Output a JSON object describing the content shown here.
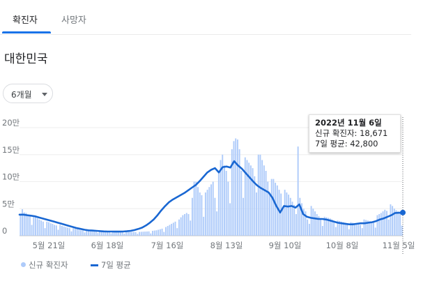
{
  "tabs": [
    {
      "label": "확진자",
      "active": true
    },
    {
      "label": "사망자",
      "active": false
    }
  ],
  "region": "대한민국",
  "period": {
    "selected": "6개월"
  },
  "tooltip": {
    "date": "2022년 11월 6일",
    "new_cases": "신규 확진자: 18,671",
    "avg7": "7일 평균: 42,800"
  },
  "legend": {
    "bars_label": "신규 확진자",
    "line_label": "7일 평균"
  },
  "colors": {
    "accent": "#1a73e8",
    "bar": "#aecbfa",
    "line": "#1967d2"
  },
  "chart_data": {
    "type": "bar",
    "x_start": "2022-05-08",
    "x_end": "2022-11-06",
    "xtick_labels": [
      "5월 21일",
      "6월 18일",
      "7월 16일",
      "8월 13일",
      "9월 10일",
      "10월 8일",
      "11월 5일"
    ],
    "ytick_labels": [
      "0",
      "5만",
      "10만",
      "15만",
      "20만"
    ],
    "ylim": [
      0,
      200000
    ],
    "grid": true,
    "series": [
      {
        "name": "신규 확진자",
        "type": "bar",
        "values": [
          40000,
          49000,
          43000,
          42000,
          38000,
          36000,
          20000,
          36000,
          35000,
          32000,
          30000,
          28000,
          26000,
          14000,
          26000,
          25000,
          23000,
          22000,
          20000,
          19000,
          11000,
          20000,
          18000,
          17000,
          16000,
          15000,
          14000,
          8000,
          14000,
          13000,
          12000,
          11000,
          10000,
          10000,
          6000,
          10000,
          9500,
          9000,
          8800,
          8500,
          8200,
          5000,
          8300,
          8200,
          8000,
          7800,
          7600,
          7500,
          4500,
          7600,
          7500,
          7400,
          7300,
          7200,
          7000,
          4000,
          7300,
          7200,
          7100,
          7000,
          6900,
          6800,
          3500,
          7000,
          7200,
          7400,
          7600,
          7800,
          8000,
          4200,
          9000,
          9500,
          10000,
          11000,
          12000,
          13000,
          7000,
          16000,
          18000,
          20000,
          22000,
          24000,
          26000,
          14000,
          30000,
          34000,
          38000,
          40000,
          42000,
          40000,
          28000,
          70000,
          100000,
          100000,
          90000,
          80000,
          75000,
          35000,
          80000,
          85000,
          90000,
          95000,
          100000,
          70000,
          45000,
          120000,
          140000,
          150000,
          130000,
          120000,
          100000,
          60000,
          160000,
          175000,
          180000,
          178000,
          160000,
          120000,
          70000,
          145000,
          140000,
          135000,
          130000,
          125000,
          110000,
          80000,
          150000,
          150000,
          140000,
          130000,
          120000,
          100000,
          75000,
          105000,
          105000,
          98000,
          93000,
          85000,
          78000,
          52000,
          85000,
          80000,
          76000,
          70000,
          63000,
          57000,
          40000,
          165000,
          70000,
          60000,
          50000,
          45000,
          30000,
          22000,
          55000,
          50000,
          45000,
          40000,
          36000,
          30000,
          18000,
          35000,
          34000,
          33000,
          32000,
          30000,
          27000,
          16000,
          28000,
          27000,
          26000,
          25000,
          24000,
          22000,
          12000,
          25000,
          24000,
          23000,
          22000,
          21000,
          20000,
          14000,
          30000,
          29000,
          28000,
          27000,
          26000,
          25000,
          15000,
          38000,
          40000,
          42000,
          45000,
          48000,
          46000,
          30000,
          58000,
          55000,
          50000,
          47000,
          45000,
          43000,
          18671
        ]
      },
      {
        "name": "7일 평균",
        "type": "line",
        "values": [
          39000,
          39000,
          38000,
          37000,
          36000,
          34000,
          32000,
          30000,
          28000,
          26000,
          24000,
          22000,
          20000,
          18000,
          16000,
          14000,
          12500,
          11000,
          10000,
          9500,
          9000,
          8500,
          8000,
          7800,
          7700,
          7600,
          7600,
          7800,
          8200,
          9000,
          10500,
          12500,
          15000,
          19000,
          24000,
          30000,
          38000,
          47000,
          55000,
          62000,
          67000,
          71000,
          75000,
          79000,
          84000,
          89000,
          94000,
          101000,
          109000,
          117000,
          122000,
          125000,
          117000,
          127000,
          128000,
          126000,
          138000,
          130000,
          124000,
          116000,
          108000,
          100000,
          93000,
          88000,
          84000,
          80000,
          70000,
          55000,
          43000,
          55000,
          54000,
          55000,
          52000,
          58000,
          40000,
          35000,
          33000,
          32000,
          31000,
          31000,
          30000,
          28000,
          26000,
          24000,
          23000,
          22000,
          21000,
          21000,
          22000,
          23000,
          23000,
          24000,
          25000,
          27000,
          30000,
          32000,
          35000,
          38000,
          42000,
          42800
        ],
        "x_fraction": [
          0,
          0.01,
          0.02,
          0.03,
          0.04,
          0.05,
          0.06,
          0.07,
          0.08,
          0.09,
          0.1,
          0.11,
          0.12,
          0.13,
          0.14,
          0.15,
          0.16,
          0.17,
          0.18,
          0.19,
          0.2,
          0.21,
          0.22,
          0.23,
          0.24,
          0.25,
          0.26,
          0.27,
          0.28,
          0.29,
          0.3,
          0.31,
          0.32,
          0.33,
          0.34,
          0.35,
          0.36,
          0.37,
          0.38,
          0.39,
          0.4,
          0.41,
          0.42,
          0.43,
          0.44,
          0.45,
          0.46,
          0.47,
          0.48,
          0.49,
          0.5,
          0.51,
          0.52,
          0.53,
          0.54,
          0.55,
          0.56,
          0.57,
          0.58,
          0.59,
          0.6,
          0.61,
          0.62,
          0.63,
          0.64,
          0.65,
          0.66,
          0.67,
          0.68,
          0.69,
          0.7,
          0.71,
          0.72,
          0.73,
          0.74,
          0.75,
          0.76,
          0.77,
          0.78,
          0.79,
          0.8,
          0.81,
          0.82,
          0.83,
          0.84,
          0.85,
          0.86,
          0.87,
          0.88,
          0.89,
          0.9,
          0.91,
          0.92,
          0.93,
          0.94,
          0.95,
          0.96,
          0.97,
          0.98,
          1.0
        ]
      }
    ]
  }
}
